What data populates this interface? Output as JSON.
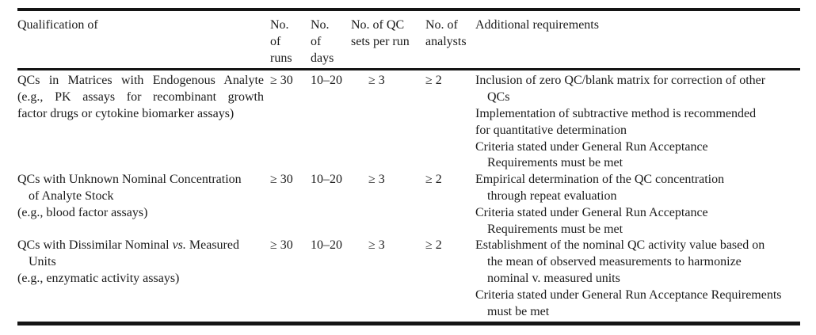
{
  "page": {
    "background_color": "#ffffff",
    "text_color": "#1b1b1b",
    "rule_color": "#141414"
  },
  "table": {
    "headers": {
      "qualification": {
        "name": "qualification",
        "lines": [
          "Qualification of"
        ]
      },
      "runs": {
        "name": "runs",
        "lines": [
          "No.",
          "of",
          "runs"
        ]
      },
      "days": {
        "name": "days",
        "lines": [
          "No.",
          "of",
          "days"
        ]
      },
      "qc_sets": {
        "name": "qc-sets-per-run",
        "lines": [
          "No. of QC",
          "sets per run"
        ]
      },
      "analysts": {
        "name": "analysts",
        "lines": [
          "No. of",
          "analysts"
        ]
      },
      "additional": {
        "name": "additional-requirements",
        "lines": [
          "Additional requirements"
        ]
      }
    },
    "rows": [
      {
        "qualification": [
          {
            "text": "QCs in Matrices with Endogenous Analyte",
            "justify": true
          },
          {
            "text": "(e.g., PK assays for recombinant growth",
            "justify": true
          },
          {
            "text": "factor drugs or cytokine biomarker assays)"
          }
        ],
        "runs": "≥ 30",
        "days": "10–20",
        "qc_sets": "≥ 3",
        "analysts": "≥ 2",
        "additional": [
          {
            "text": "Inclusion of zero QC/blank matrix for correction of other"
          },
          {
            "text": "QCs",
            "indent": true
          },
          {
            "text": "Implementation of subtractive method is recommended"
          },
          {
            "text": "for quantitative determination"
          },
          {
            "text": "Criteria stated under General Run Acceptance"
          },
          {
            "text": "Requirements must be met",
            "indent": true
          }
        ]
      },
      {
        "qualification": [
          {
            "text": "QCs with Unknown Nominal Concentration"
          },
          {
            "text": "of Analyte Stock",
            "indent": true
          },
          {
            "text": "(e.g., blood factor assays)"
          }
        ],
        "runs": "≥ 30",
        "days": "10–20",
        "qc_sets": "≥ 3",
        "analysts": "≥ 2",
        "additional": [
          {
            "text": "Empirical determination of the QC concentration"
          },
          {
            "text": "through repeat evaluation",
            "indent": true
          },
          {
            "text": "Criteria stated under General Run Acceptance"
          },
          {
            "text": "Requirements must be met",
            "indent": true
          }
        ]
      },
      {
        "qualification": [
          {
            "segments": [
              {
                "t": "QCs with Dissimilar Nominal "
              },
              {
                "t": "vs.",
                "italic": true
              },
              {
                "t": " Measured"
              }
            ]
          },
          {
            "text": "Units",
            "indent": true
          },
          {
            "text": "(e.g., enzymatic activity assays)"
          }
        ],
        "runs": "≥ 30",
        "days": "10–20",
        "qc_sets": "≥ 3",
        "analysts": "≥ 2",
        "additional": [
          {
            "text": "Establishment of the nominal QC activity value based on"
          },
          {
            "text": "the mean of observed measurements to harmonize",
            "indent": true
          },
          {
            "text": "nominal v. measured units",
            "indent": true
          },
          {
            "text": "Criteria stated under General Run Acceptance Requirements"
          },
          {
            "text": "must be met",
            "indent": true
          }
        ]
      }
    ]
  }
}
